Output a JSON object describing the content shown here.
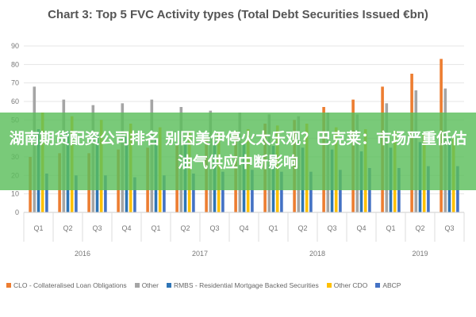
{
  "chart_data": {
    "type": "bar",
    "title": "Chart 3: Top 5 FVC Activity types (Total Debt Securities Issued €bn)",
    "ylim": [
      0,
      90
    ],
    "yticks": [
      0,
      10,
      20,
      30,
      40,
      50,
      60,
      70,
      80,
      90
    ],
    "categories": [
      "Q1",
      "Q2",
      "Q3",
      "Q4",
      "Q1",
      "Q2",
      "Q3",
      "Q4",
      "Q1",
      "Q2",
      "Q3",
      "Q4",
      "Q1",
      "Q2",
      "Q3"
    ],
    "groups": [
      {
        "label": "2016",
        "count": 4
      },
      {
        "label": "2017",
        "count": 4
      },
      {
        "label": "2018",
        "count": 4
      },
      {
        "label": "2019",
        "count": 3
      }
    ],
    "series": [
      {
        "name": "CLO - Collateralised Loan Obligations",
        "color": "#ED7D31",
        "values": [
          30,
          32,
          32,
          34,
          35,
          37,
          40,
          44,
          48,
          50,
          57,
          61,
          68,
          75,
          83
        ]
      },
      {
        "name": "Other",
        "color": "#A5A5A5",
        "values": [
          68,
          61,
          58,
          59,
          61,
          57,
          55,
          54,
          53,
          52,
          54,
          53,
          59,
          66,
          67
        ]
      },
      {
        "name": "RMBS - Residential Mortgage Backed Securities",
        "color": "#2E75B6",
        "values": [
          45,
          44,
          42,
          41,
          40,
          39,
          38,
          37,
          36,
          35,
          34,
          33,
          35,
          38,
          40
        ]
      },
      {
        "name": "Other CDO",
        "color": "#FFC000",
        "values": [
          54,
          52,
          50,
          48,
          46,
          44,
          43,
          45,
          47,
          48,
          46,
          45,
          44,
          42,
          40
        ]
      },
      {
        "name": "ABCP",
        "color": "#4472C4",
        "values": [
          21,
          20,
          20,
          19,
          20,
          21,
          22,
          23,
          22,
          22,
          23,
          24,
          24,
          25,
          25
        ]
      }
    ],
    "grid": true,
    "legend": "bottom"
  },
  "overlay": {
    "text": "湖南期货配资公司排名 别因美伊停火太乐观？巴克莱：市场严重低估油气供应中断影响"
  }
}
